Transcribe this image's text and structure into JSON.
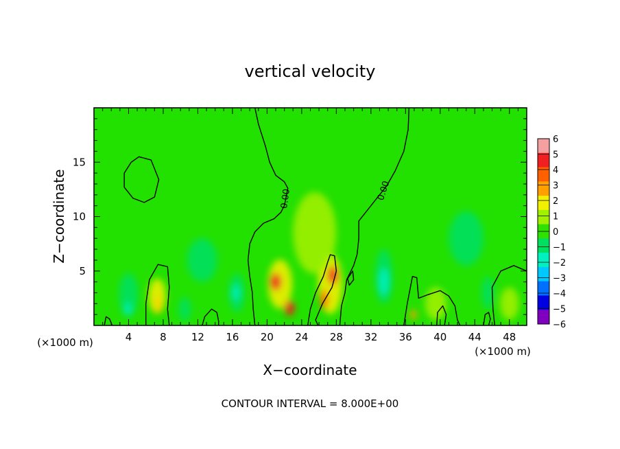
{
  "chart_data": {
    "type": "heatmap",
    "title": "vertical velocity",
    "xlabel": "X−coordinate",
    "ylabel": "Z−coordinate",
    "x_unit": "(×1000 m)",
    "footer": "CONTOUR INTERVAL = 8.000E+00",
    "xlim": [
      0,
      50
    ],
    "ylim": [
      0,
      20
    ],
    "x_ticks": [
      "4",
      "8",
      "12",
      "16",
      "20",
      "24",
      "28",
      "32",
      "36",
      "40",
      "44",
      "48"
    ],
    "y_ticks": [
      "5",
      "10",
      "15"
    ],
    "colorbar": {
      "labels": [
        "6",
        "5",
        "4",
        "3",
        "2",
        "1",
        "0",
        "−1",
        "−2",
        "−3",
        "−4",
        "−5",
        "−6"
      ],
      "colors": [
        "#f4a0a0",
        "#f02020",
        "#ff6000",
        "#ffa000",
        "#f0f000",
        "#a0f000",
        "#30e000",
        "#00e060",
        "#00f0c0",
        "#00c8ff",
        "#0070ff",
        "#0000e0",
        "#8000c0"
      ]
    },
    "contour_labels": [
      "0.00",
      "0.00"
    ],
    "background_color": "#22e000",
    "features": [
      {
        "x": 7.4,
        "z": 1.9,
        "w": 1.1,
        "h": 1.7,
        "level": 5
      },
      {
        "x": 7.3,
        "z": 2.7,
        "w": 2.0,
        "h": 3.2,
        "level": 2
      },
      {
        "x": 21.5,
        "z": 3.8,
        "w": 2.8,
        "h": 4.5,
        "level": 2
      },
      {
        "x": 21.0,
        "z": 4.0,
        "w": 1.3,
        "h": 1.6,
        "level": 5
      },
      {
        "x": 22.6,
        "z": 1.6,
        "w": 1.2,
        "h": 1.4,
        "level": 5
      },
      {
        "x": 27.3,
        "z": 3.8,
        "w": 2.8,
        "h": 5.5,
        "level": 2
      },
      {
        "x": 27.6,
        "z": 4.6,
        "w": 1.2,
        "h": 1.7,
        "level": 5
      },
      {
        "x": 26.6,
        "z": 2.4,
        "w": 0.9,
        "h": 1.8,
        "level": 4
      },
      {
        "x": 25.5,
        "z": 8.5,
        "w": 5.0,
        "h": 7.5,
        "level": 1
      },
      {
        "x": 36.9,
        "z": 1.0,
        "w": 0.8,
        "h": 0.9,
        "level": 3
      },
      {
        "x": 48.0,
        "z": 2.0,
        "w": 2.2,
        "h": 3.0,
        "level": 1
      },
      {
        "x": 39.5,
        "z": 2.0,
        "w": 2.5,
        "h": 3.0,
        "level": 1
      },
      {
        "x": 4.0,
        "z": 2.8,
        "w": 2.2,
        "h": 4.0,
        "level": -1
      },
      {
        "x": 3.9,
        "z": 1.5,
        "w": 0.8,
        "h": 1.2,
        "level": -2
      },
      {
        "x": 16.5,
        "z": 3.0,
        "w": 1.8,
        "h": 3.5,
        "level": -1
      },
      {
        "x": 16.4,
        "z": 3.0,
        "w": 0.9,
        "h": 1.4,
        "level": -2
      },
      {
        "x": 33.5,
        "z": 4.5,
        "w": 2.0,
        "h": 5.0,
        "level": -1
      },
      {
        "x": 33.5,
        "z": 4.0,
        "w": 1.2,
        "h": 2.5,
        "level": -2
      },
      {
        "x": 10.5,
        "z": 1.5,
        "w": 1.4,
        "h": 2.2,
        "level": -1
      },
      {
        "x": 45.5,
        "z": 3.0,
        "w": 1.4,
        "h": 3.0,
        "level": -1
      },
      {
        "x": 12.5,
        "z": 6.0,
        "w": 3.5,
        "h": 4.0,
        "level": -1
      },
      {
        "x": 43.0,
        "z": 8.0,
        "w": 4.0,
        "h": 5.0,
        "level": -1
      }
    ],
    "contours": [
      [
        [
          18.6,
          20
        ],
        [
          19.0,
          18.5
        ],
        [
          19.8,
          16.5
        ],
        [
          20.3,
          15.0
        ],
        [
          21.0,
          13.8
        ],
        [
          22.0,
          13.2
        ],
        [
          22.4,
          12.6
        ],
        [
          22.2,
          11.8
        ],
        [
          22.0,
          11.0
        ],
        [
          21.6,
          10.4
        ],
        [
          20.8,
          9.8
        ],
        [
          19.6,
          9.4
        ],
        [
          18.6,
          8.6
        ],
        [
          18.0,
          7.5
        ],
        [
          17.8,
          6.0
        ],
        [
          18.0,
          4.5
        ],
        [
          18.3,
          3.0
        ],
        [
          18.4,
          1.5
        ],
        [
          18.6,
          0
        ]
      ],
      [
        [
          36.4,
          20
        ],
        [
          36.3,
          18.0
        ],
        [
          35.8,
          16.0
        ],
        [
          34.8,
          14.2
        ],
        [
          33.8,
          12.8
        ],
        [
          32.6,
          11.6
        ],
        [
          31.6,
          10.6
        ],
        [
          30.6,
          9.6
        ],
        [
          30.6,
          8.0
        ],
        [
          30.4,
          6.5
        ],
        [
          30.0,
          5.5
        ],
        [
          29.2,
          4.2
        ],
        [
          29.0,
          3.0
        ],
        [
          28.6,
          1.8
        ],
        [
          28.4,
          0
        ]
      ],
      [
        [
          4.3,
          15.0
        ],
        [
          5.2,
          15.5
        ],
        [
          6.6,
          15.2
        ],
        [
          7.5,
          13.4
        ],
        [
          7.0,
          11.8
        ],
        [
          5.8,
          11.3
        ],
        [
          4.5,
          11.7
        ],
        [
          3.5,
          12.7
        ],
        [
          3.5,
          14.0
        ],
        [
          4.3,
          15.0
        ]
      ],
      [
        [
          6.0,
          0
        ],
        [
          6.0,
          2.0
        ],
        [
          6.4,
          4.2
        ],
        [
          7.4,
          5.6
        ],
        [
          8.5,
          5.4
        ],
        [
          8.7,
          3.5
        ],
        [
          8.5,
          1.5
        ],
        [
          8.7,
          0
        ]
      ],
      [
        [
          24.7,
          0
        ],
        [
          25.0,
          1.5
        ],
        [
          25.6,
          3.0
        ],
        [
          26.5,
          4.5
        ],
        [
          27.0,
          5.8
        ],
        [
          27.3,
          6.5
        ],
        [
          27.8,
          6.4
        ],
        [
          28.0,
          5.0
        ],
        [
          27.5,
          3.5
        ],
        [
          26.4,
          2.0
        ],
        [
          25.6,
          0.5
        ],
        [
          25.9,
          0
        ]
      ],
      [
        [
          29.3,
          4.3
        ],
        [
          29.9,
          5.0
        ],
        [
          30.0,
          4.2
        ],
        [
          29.5,
          3.7
        ],
        [
          29.3,
          4.3
        ]
      ],
      [
        [
          35.8,
          0
        ],
        [
          36.2,
          2.0
        ],
        [
          36.8,
          4.5
        ],
        [
          37.3,
          4.4
        ],
        [
          37.5,
          2.5
        ],
        [
          38.5,
          2.8
        ],
        [
          40.0,
          3.2
        ],
        [
          41.0,
          2.7
        ],
        [
          41.7,
          1.8
        ],
        [
          42.0,
          0.5
        ],
        [
          42.3,
          0
        ]
      ],
      [
        [
          46.3,
          0
        ],
        [
          46.1,
          1.5
        ],
        [
          46.0,
          3.5
        ],
        [
          47.0,
          5.0
        ],
        [
          48.5,
          5.5
        ],
        [
          50,
          5.0
        ]
      ],
      [
        [
          1.2,
          0
        ],
        [
          1.4,
          0.8
        ],
        [
          1.8,
          0.6
        ],
        [
          2.1,
          0
        ]
      ],
      [
        [
          12.5,
          0
        ],
        [
          12.8,
          0.8
        ],
        [
          13.6,
          1.5
        ],
        [
          14.2,
          1.2
        ],
        [
          14.4,
          0.4
        ],
        [
          14.4,
          0
        ]
      ],
      [
        [
          39.6,
          0
        ],
        [
          39.7,
          1.2
        ],
        [
          40.3,
          1.8
        ],
        [
          40.7,
          1.0
        ],
        [
          40.5,
          0
        ]
      ],
      [
        [
          45.0,
          0
        ],
        [
          45.2,
          1.0
        ],
        [
          45.6,
          1.2
        ],
        [
          45.8,
          0.6
        ],
        [
          45.6,
          0
        ]
      ]
    ]
  }
}
